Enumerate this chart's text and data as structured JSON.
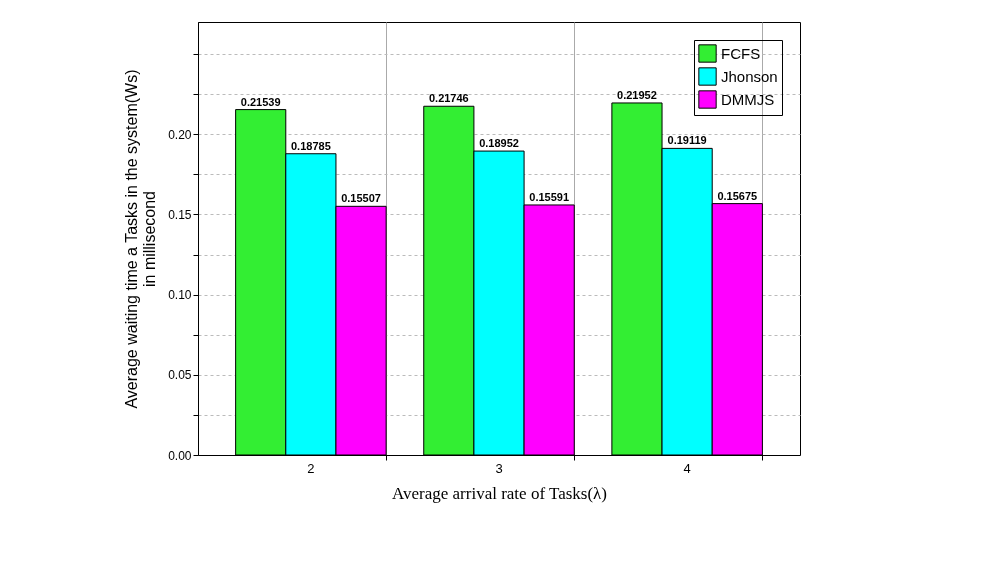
{
  "chart_data": {
    "type": "bar",
    "xlabel": "Average arrival rate of Tasks(λ)",
    "ylabel": "Average waiting time a Tasks in the system(Ws)\nin millisecond",
    "categories": [
      "2",
      "3",
      "4"
    ],
    "series": [
      {
        "name": "FCFS",
        "color": "#33ee33",
        "values": [
          0.21539,
          0.21746,
          0.21952
        ]
      },
      {
        "name": "Jhonson",
        "color": "#00ffff",
        "values": [
          0.18785,
          0.18952,
          0.19119
        ]
      },
      {
        "name": "DMMJS",
        "color": "#ff00ff",
        "values": [
          0.15507,
          0.15591,
          0.15675
        ]
      }
    ],
    "ylim": [
      0,
      0.27
    ],
    "yticks": [
      {
        "value": 0,
        "label": "0.00"
      },
      {
        "value": 0.025,
        "label": null
      },
      {
        "value": 0.05,
        "label": "0.05"
      },
      {
        "value": 0.075,
        "label": null
      },
      {
        "value": 0.1,
        "label": "0.10"
      },
      {
        "value": 0.125,
        "label": null
      },
      {
        "value": 0.15,
        "label": "0.15"
      },
      {
        "value": 0.175,
        "label": null
      },
      {
        "value": 0.2,
        "label": "0.20"
      },
      {
        "value": 0.225,
        "label": null
      },
      {
        "value": 0.25,
        "label": null
      }
    ],
    "data_labels": true,
    "grid": true,
    "legend": "top right"
  }
}
